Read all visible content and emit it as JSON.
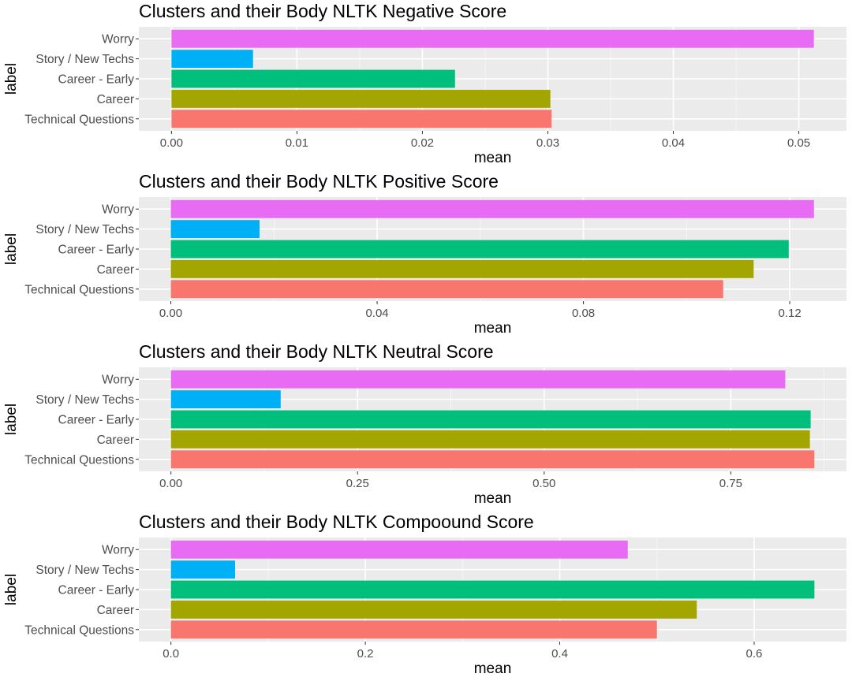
{
  "chart_data": [
    {
      "type": "bar",
      "orientation": "horizontal",
      "title": "Clusters and their Body NLTK Negative Score",
      "xlabel": "mean",
      "ylabel": "label",
      "categories": [
        "Worry",
        "Story / New Techs",
        "Career - Early",
        "Career",
        "Technical Questions"
      ],
      "values": [
        0.0512,
        0.0065,
        0.0226,
        0.0302,
        0.0303
      ],
      "xlim": [
        -0.0026,
        0.0538
      ],
      "xticks": [
        0.0,
        0.01,
        0.02,
        0.03,
        0.04,
        0.05
      ],
      "xtick_labels": [
        "0.00",
        "0.01",
        "0.02",
        "0.03",
        "0.04",
        "0.05"
      ],
      "grid": true
    },
    {
      "type": "bar",
      "orientation": "horizontal",
      "title": "Clusters and their Body NLTK Positive Score",
      "xlabel": "mean",
      "ylabel": "label",
      "categories": [
        "Worry",
        "Story / New Techs",
        "Career - Early",
        "Career",
        "Technical Questions"
      ],
      "values": [
        0.1247,
        0.0172,
        0.1198,
        0.113,
        0.1071
      ],
      "xlim": [
        -0.0062,
        0.131
      ],
      "xticks": [
        0.0,
        0.04,
        0.08,
        0.12
      ],
      "xtick_labels": [
        "0.00",
        "0.04",
        "0.08",
        "0.12"
      ],
      "grid": true
    },
    {
      "type": "bar",
      "orientation": "horizontal",
      "title": "Clusters and their Body NLTK Neutral Score",
      "xlabel": "mean",
      "ylabel": "label",
      "categories": [
        "Worry",
        "Story / New Techs",
        "Career - Early",
        "Career",
        "Technical Questions"
      ],
      "values": [
        0.823,
        0.147,
        0.857,
        0.856,
        0.862
      ],
      "xlim": [
        -0.043,
        0.905
      ],
      "xticks": [
        0.0,
        0.25,
        0.5,
        0.75
      ],
      "xtick_labels": [
        "0.00",
        "0.25",
        "0.50",
        "0.75"
      ],
      "grid": true
    },
    {
      "type": "bar",
      "orientation": "horizontal",
      "title": "Clusters and their Body NLTK Compoound Score",
      "xlabel": "mean",
      "ylabel": "label",
      "categories": [
        "Worry",
        "Story / New Techs",
        "Career - Early",
        "Career",
        "Technical Questions"
      ],
      "values": [
        0.47,
        0.066,
        0.662,
        0.541,
        0.5
      ],
      "xlim": [
        -0.033,
        0.695
      ],
      "xticks": [
        0.0,
        0.2,
        0.4,
        0.6
      ],
      "xtick_labels": [
        "0.0",
        "0.2",
        "0.4",
        "0.6"
      ],
      "grid": true
    }
  ],
  "colors": {
    "Worry": "#e76bf3",
    "Story / New Techs": "#00b0f6",
    "Career - Early": "#00bf7d",
    "Career": "#a3a500",
    "Technical Questions": "#f8766d",
    "panel_background": "#ebebeb",
    "grid_major": "#ffffff",
    "grid_minor": "#f5f5f5"
  }
}
